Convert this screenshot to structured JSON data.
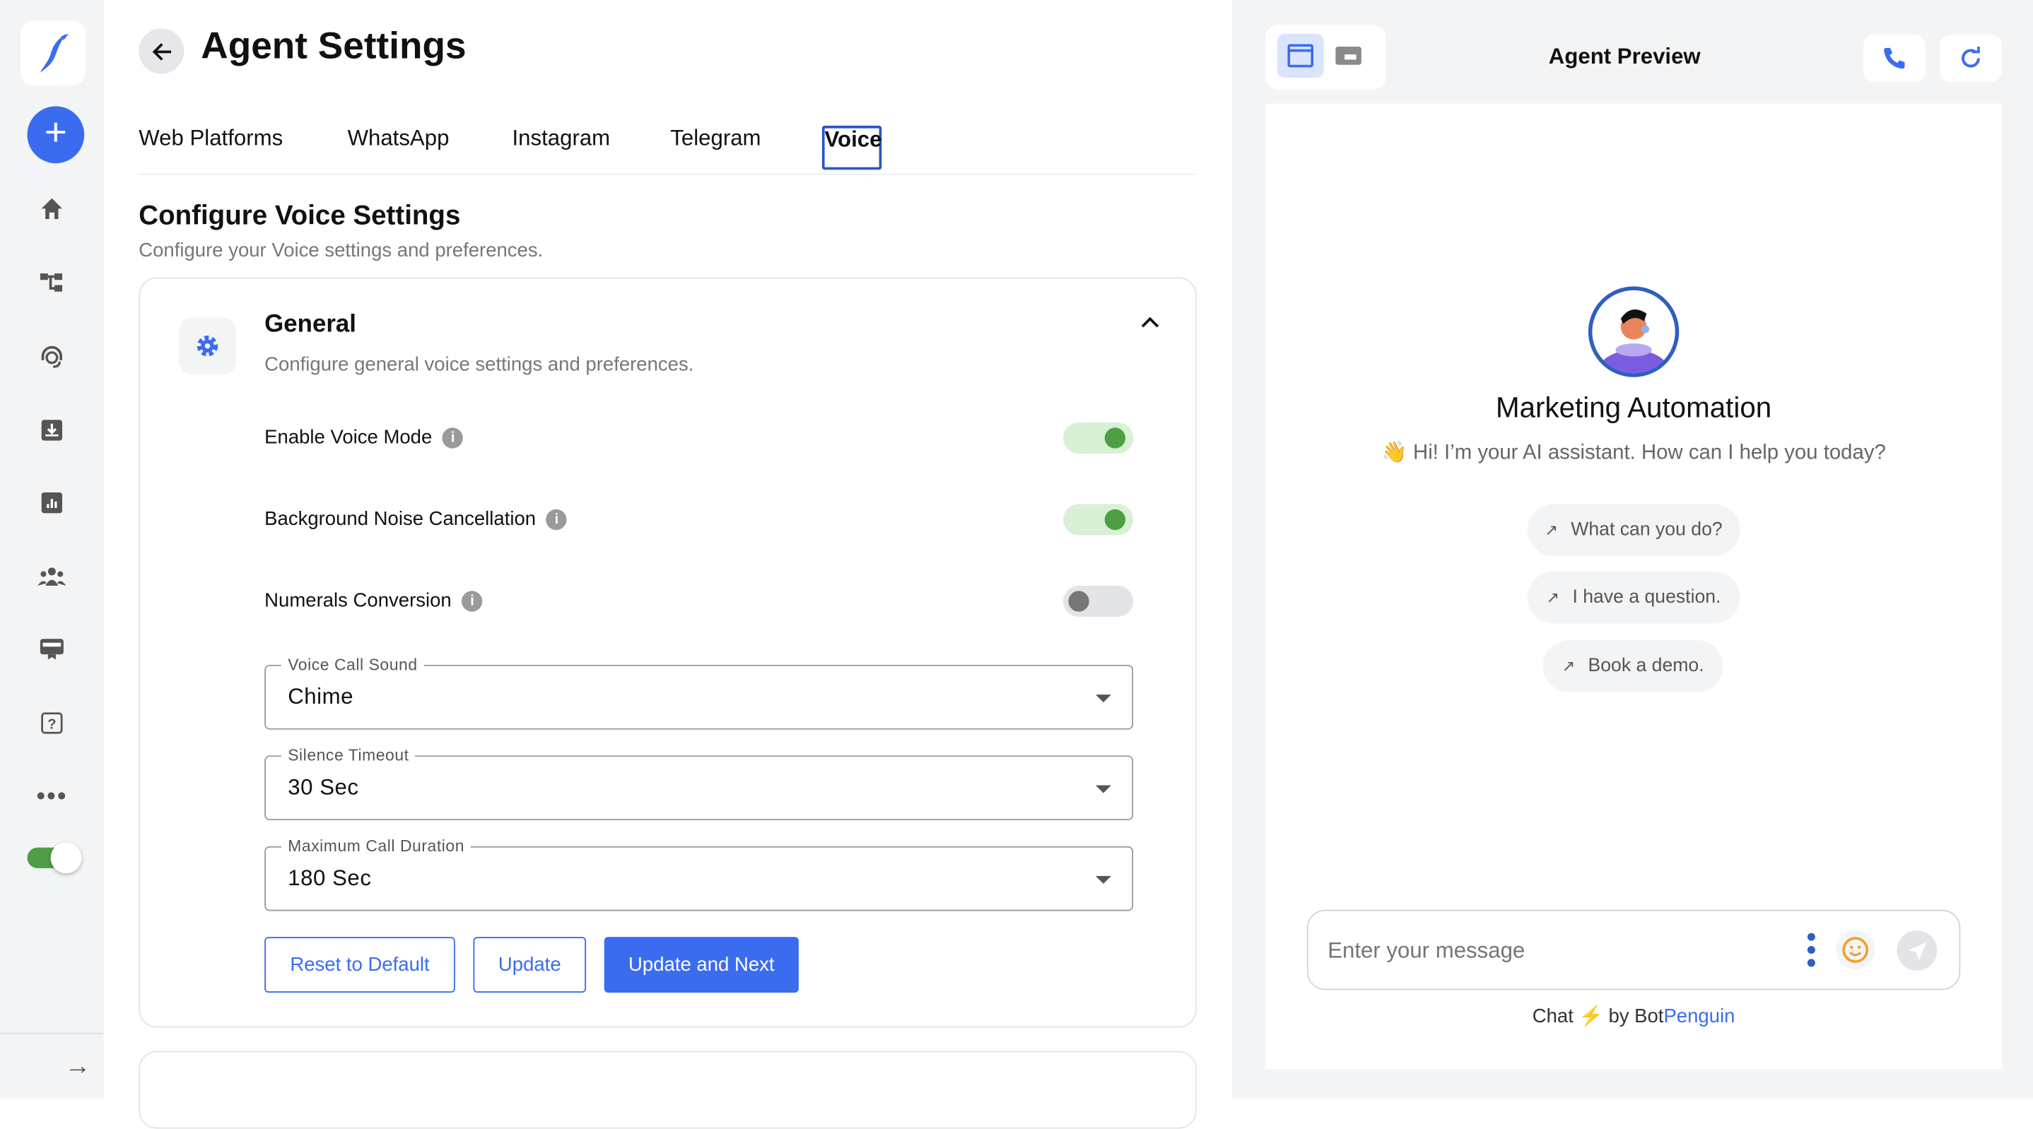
{
  "sidebar": {
    "icons": [
      "bird-logo-icon",
      "plus-icon",
      "home-icon",
      "flow-icon",
      "headset-icon",
      "inbox-download-icon",
      "analytics-icon",
      "team-icon",
      "billing-icon",
      "help-icon",
      "more-icon"
    ],
    "toggle_on": true,
    "expand_icon": "arrow-right-icon"
  },
  "header": {
    "title": "Agent Settings"
  },
  "tabs": [
    {
      "label": "Web Platforms"
    },
    {
      "label": "WhatsApp"
    },
    {
      "label": "Instagram"
    },
    {
      "label": "Telegram"
    },
    {
      "label": "Voice",
      "active": true
    }
  ],
  "section": {
    "title": "Configure Voice Settings",
    "subtitle": "Configure your Voice settings and preferences."
  },
  "general": {
    "title": "General",
    "subtitle": "Configure general voice settings and preferences.",
    "toggles": [
      {
        "label": "Enable Voice Mode",
        "on": true
      },
      {
        "label": "Background Noise Cancellation",
        "on": true
      },
      {
        "label": "Numerals Conversion",
        "on": false
      }
    ],
    "selects": [
      {
        "label": "Voice Call Sound",
        "value": "Chime"
      },
      {
        "label": "Silence Timeout",
        "value": "30 Sec"
      },
      {
        "label": "Maximum Call Duration",
        "value": "180 Sec"
      }
    ],
    "buttons": {
      "reset": "Reset to Default",
      "update": "Update",
      "update_next": "Update and Next"
    }
  },
  "preview": {
    "title": "Agent Preview",
    "bot_name": "Marketing Automation",
    "greeting": "👋 Hi! I’m your AI assistant. How can I help you today?",
    "chips": [
      "What can you do?",
      "I have a question.",
      "Book a demo."
    ],
    "input_placeholder": "Enter your message",
    "footer": {
      "chat": "Chat",
      "bolt": "⚡",
      "by": "by Bot",
      "brand": "Penguin"
    }
  },
  "colors": {
    "accent": "#3b6cf0",
    "toggle_on": "#4e9e46",
    "emoji": "#f0a030"
  }
}
